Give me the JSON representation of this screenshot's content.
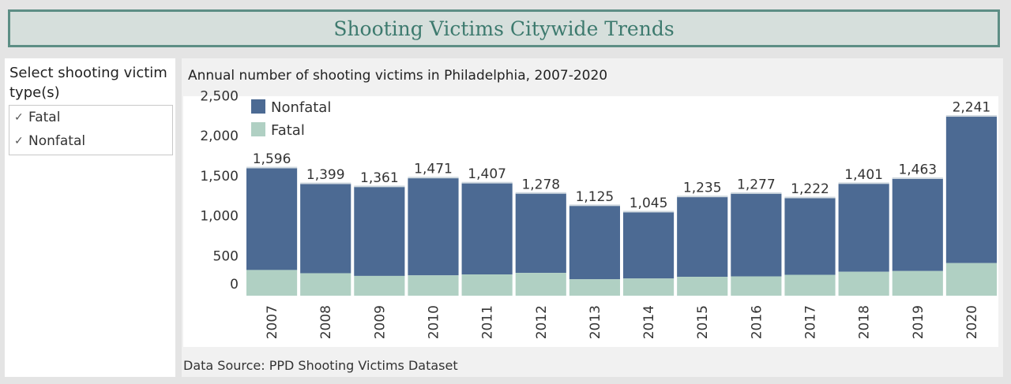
{
  "header": {
    "title": "Shooting Victims Citywide Trends"
  },
  "filter": {
    "title": "Select shooting victim type(s)",
    "options": [
      {
        "label": "Fatal",
        "checked": true,
        "check_glyph": "✓"
      },
      {
        "label": "Nonfatal",
        "checked": true,
        "check_glyph": "✓"
      }
    ]
  },
  "chart": {
    "heading": "Annual number of shooting victims in Philadelphia, 2007-2020",
    "source": "Data Source: PPD Shooting Victims Dataset"
  },
  "chart_data": {
    "type": "bar",
    "stacked": true,
    "title": "Annual number of shooting victims in Philadelphia, 2007-2020",
    "xlabel": "",
    "ylabel": "",
    "categories": [
      "2007",
      "2008",
      "2009",
      "2010",
      "2011",
      "2012",
      "2013",
      "2014",
      "2015",
      "2016",
      "2017",
      "2018",
      "2019",
      "2020"
    ],
    "series": [
      {
        "name": "Fatal",
        "color": "#b0d0c3",
        "values": [
          321,
          281,
          247,
          254,
          266,
          285,
          205,
          215,
          236,
          241,
          261,
          299,
          308,
          407
        ]
      },
      {
        "name": "Nonfatal",
        "color": "#4c6a93",
        "values": [
          1275,
          1118,
          1114,
          1217,
          1141,
          993,
          920,
          830,
          999,
          1036,
          961,
          1102,
          1155,
          1834
        ]
      }
    ],
    "totals": [
      1596,
      1399,
      1361,
      1471,
      1407,
      1278,
      1125,
      1045,
      1235,
      1277,
      1222,
      1401,
      1463,
      2241
    ],
    "total_labels": [
      "1,596",
      "1,399",
      "1,361",
      "1,471",
      "1,407",
      "1,278",
      "1,125",
      "1,045",
      "1,235",
      "1,277",
      "1,222",
      "1,401",
      "1,463",
      "2,241"
    ],
    "yticks": [
      0,
      500,
      1000,
      1500,
      2000,
      2500
    ],
    "ytick_labels": [
      "0",
      "500",
      "1,000",
      "1,500",
      "2,000",
      "2,500"
    ],
    "ylim": [
      0,
      2500
    ],
    "legend": [
      {
        "name": "Nonfatal",
        "color": "#4c6a93"
      },
      {
        "name": "Fatal",
        "color": "#b0d0c3"
      }
    ],
    "legend_position": "top-left",
    "grid": false
  }
}
